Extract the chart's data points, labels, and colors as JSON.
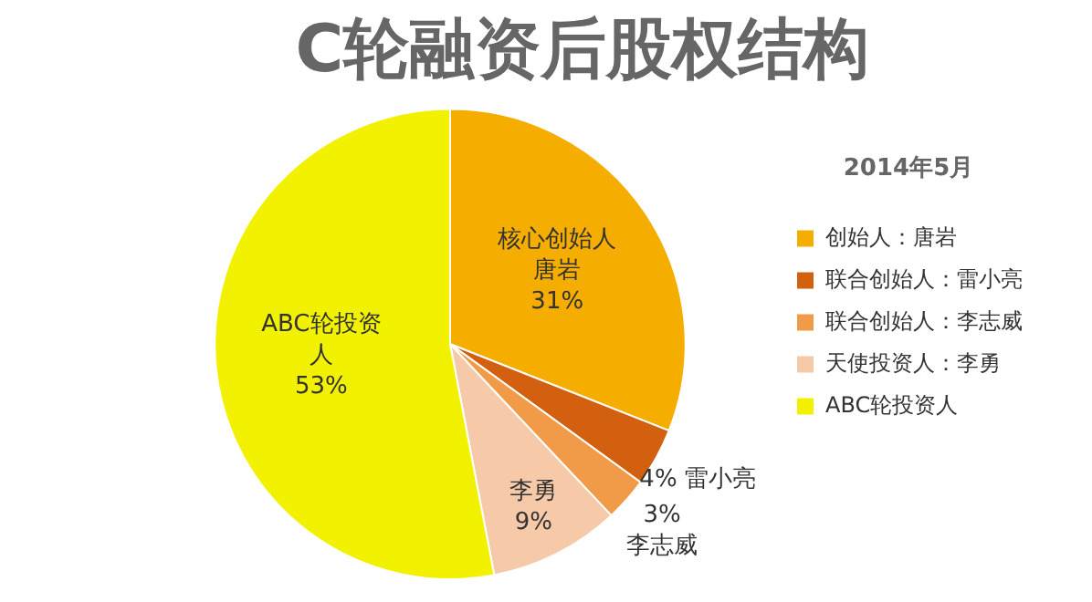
{
  "chart_data": {
    "type": "pie",
    "title": "C轮融资后股权结构",
    "legend_title": "2014年5月",
    "legend": "right",
    "categories": [
      "创始人：唐岩",
      "联合创始人：雷小亮",
      "联合创始人：李志威",
      "天使投资人：李勇",
      "ABC轮投资人"
    ],
    "values": [
      31,
      4,
      3,
      9,
      53
    ],
    "colors": [
      "#f5ad00",
      "#d2600e",
      "#f19a48",
      "#f6c9a9",
      "#f2f200"
    ],
    "value_labels": [
      "核心创始人唐岩31%",
      "4% 雷小亮",
      "3%李志威",
      "李勇9%",
      "ABC轮投资人53%"
    ]
  }
}
